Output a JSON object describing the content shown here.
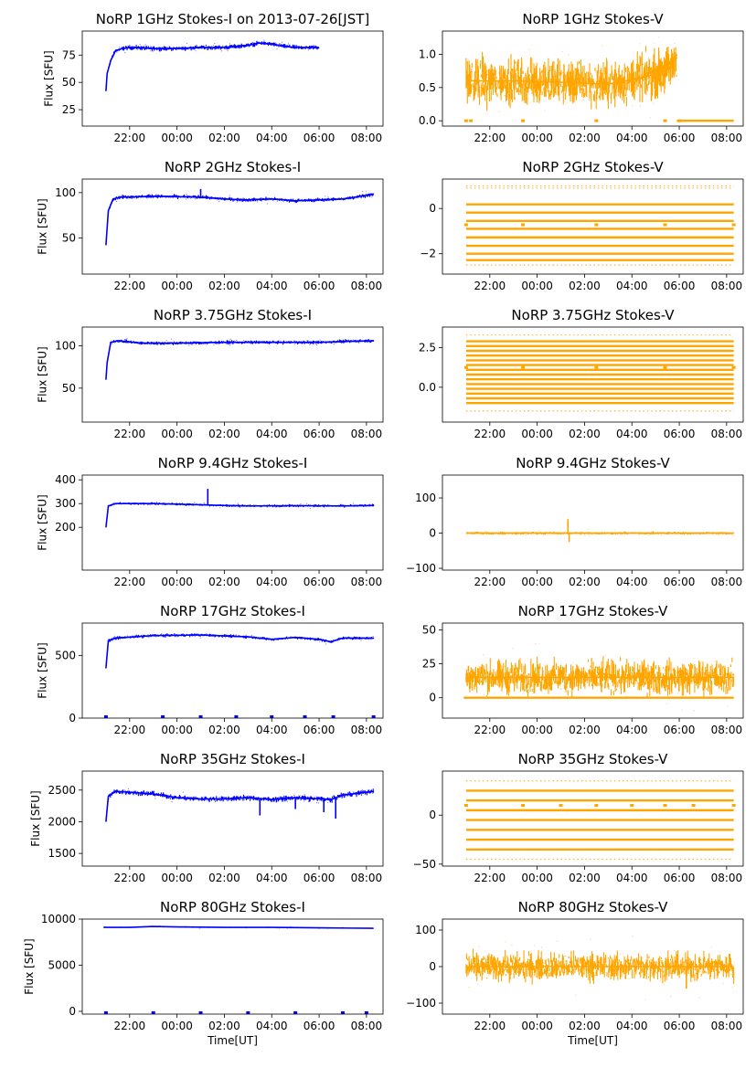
{
  "figure": {
    "xtick_labels": [
      "22:00",
      "00:00",
      "02:00",
      "04:00",
      "06:00",
      "08:00"
    ],
    "xlabel": "Time[UT]",
    "ylabel": "Flux [SFU]",
    "colors": {
      "stokes_i": "#0000ff",
      "stokes_v": "#ffa500"
    }
  },
  "chart_data": [
    {
      "type": "scatter",
      "stokes": "I",
      "row": 0,
      "title": "NoRP 1GHz Stokes-I on 2013-07-26[JST]",
      "ylabel": "Flux [SFU]",
      "x_hours_range": [
        20.0,
        32.7
      ],
      "ylim": [
        10,
        97
      ],
      "yticks": [
        25,
        50,
        75
      ],
      "data_span_hours": [
        21.0,
        30.0
      ],
      "points": [
        [
          21.0,
          42
        ],
        [
          21.05,
          58
        ],
        [
          21.2,
          70
        ],
        [
          21.4,
          79
        ],
        [
          21.7,
          81
        ],
        [
          22.0,
          82
        ],
        [
          23.0,
          81
        ],
        [
          24.0,
          81
        ],
        [
          25.0,
          82
        ],
        [
          26.0,
          82
        ],
        [
          27.0,
          84
        ],
        [
          27.5,
          86
        ],
        [
          28.0,
          85
        ],
        [
          28.5,
          83
        ],
        [
          29.0,
          82
        ],
        [
          30.0,
          82
        ]
      ],
      "noise": 3,
      "spikes": []
    },
    {
      "type": "scatter",
      "stokes": "V",
      "row": 0,
      "title": "NoRP 1GHz Stokes-V",
      "x_hours_range": [
        20.0,
        32.7
      ],
      "ylim": [
        -0.08,
        1.35
      ],
      "yticks": [
        0.0,
        0.5,
        1.0
      ],
      "ytick_labels": [
        "0.0",
        "0.5",
        "1.0"
      ],
      "data_span_hours": [
        21.0,
        29.9
      ],
      "points": [
        [
          21.0,
          0.6
        ],
        [
          23.0,
          0.6
        ],
        [
          25.0,
          0.58
        ],
        [
          27.0,
          0.55
        ],
        [
          28.0,
          0.62
        ],
        [
          29.0,
          0.7
        ],
        [
          29.7,
          0.8
        ],
        [
          29.9,
          1.0
        ]
      ],
      "noise": 0.5,
      "baseline": {
        "value": 0.0,
        "from": 29.9,
        "to": 32.3
      },
      "markers": [
        21.0,
        21.2,
        23.4,
        26.5,
        29.4,
        30.0
      ]
    },
    {
      "type": "scatter",
      "stokes": "I",
      "row": 1,
      "title": "NoRP 2GHz Stokes-I",
      "x_hours_range": [
        20.0,
        32.7
      ],
      "ylim": [
        10,
        115
      ],
      "yticks": [
        50,
        100
      ],
      "data_span_hours": [
        21.0,
        32.3
      ],
      "points": [
        [
          21.0,
          42
        ],
        [
          21.1,
          80
        ],
        [
          21.3,
          93
        ],
        [
          21.6,
          95
        ],
        [
          23.0,
          96
        ],
        [
          25.0,
          95
        ],
        [
          26.0,
          93
        ],
        [
          27.0,
          92
        ],
        [
          28.0,
          93
        ],
        [
          29.0,
          91
        ],
        [
          30.0,
          92
        ],
        [
          31.0,
          93
        ],
        [
          32.0,
          97
        ],
        [
          32.3,
          98
        ]
      ],
      "noise": 3,
      "spikes": [
        [
          25.0,
          104
        ]
      ]
    },
    {
      "type": "scatter",
      "stokes": "V",
      "row": 1,
      "title": "NoRP 2GHz Stokes-V",
      "x_hours_range": [
        20.0,
        32.7
      ],
      "ylim": [
        -2.9,
        1.3
      ],
      "yticks": [
        -2,
        0
      ],
      "ytick_labels": [
        "−2",
        "0"
      ],
      "data_span_hours": [
        21.0,
        32.3
      ],
      "levels": [
        0.18,
        -0.18,
        -0.55,
        -0.9,
        -1.28,
        -1.65,
        -2.0,
        -2.28
      ],
      "sparse_levels": [
        1.0,
        0.9,
        -2.5
      ],
      "markers": [
        21.0,
        23.4,
        26.5,
        29.4,
        32.3
      ]
    },
    {
      "type": "scatter",
      "stokes": "I",
      "row": 2,
      "title": "NoRP 3.75GHz Stokes-I",
      "x_hours_range": [
        20.0,
        32.7
      ],
      "ylim": [
        10,
        122
      ],
      "yticks": [
        50,
        100
      ],
      "data_span_hours": [
        21.0,
        32.3
      ],
      "points": [
        [
          21.0,
          60
        ],
        [
          21.05,
          80
        ],
        [
          21.2,
          104
        ],
        [
          21.5,
          106
        ],
        [
          22.5,
          103
        ],
        [
          24.0,
          103
        ],
        [
          26.0,
          104
        ],
        [
          28.0,
          104
        ],
        [
          30.0,
          104
        ],
        [
          31.0,
          105
        ],
        [
          32.3,
          106
        ]
      ],
      "noise": 3,
      "spikes": []
    },
    {
      "type": "scatter",
      "stokes": "V",
      "row": 2,
      "title": "NoRP 3.75GHz Stokes-V",
      "x_hours_range": [
        20.0,
        32.7
      ],
      "ylim": [
        -2.2,
        3.8
      ],
      "yticks": [
        0.0,
        2.5
      ],
      "ytick_labels": [
        "0.0",
        "2.5"
      ],
      "data_span_hours": [
        21.0,
        32.3
      ],
      "levels": [
        2.9,
        2.6,
        2.3,
        2.0,
        1.7,
        1.4,
        1.1,
        0.8,
        0.5,
        0.2,
        -0.1,
        -0.4,
        -0.7,
        -1.0
      ],
      "sparse_levels": [
        3.3,
        -1.5
      ],
      "markers": [
        21.0,
        23.4,
        26.5,
        29.4,
        32.3
      ]
    },
    {
      "type": "scatter",
      "stokes": "I",
      "row": 3,
      "title": "NoRP 9.4GHz Stokes-I",
      "x_hours_range": [
        20.0,
        32.7
      ],
      "ylim": [
        20,
        420
      ],
      "yticks": [
        200,
        300,
        400
      ],
      "data_span_hours": [
        21.0,
        32.3
      ],
      "points": [
        [
          21.0,
          200
        ],
        [
          21.1,
          290
        ],
        [
          21.4,
          300
        ],
        [
          23.0,
          300
        ],
        [
          25.0,
          295
        ],
        [
          26.0,
          292
        ],
        [
          27.0,
          290
        ],
        [
          29.0,
          291
        ],
        [
          31.0,
          290
        ],
        [
          32.3,
          292
        ]
      ],
      "noise": 8,
      "spikes": [
        [
          25.3,
          362
        ]
      ]
    },
    {
      "type": "scatter",
      "stokes": "V",
      "row": 3,
      "title": "NoRP 9.4GHz Stokes-V",
      "x_hours_range": [
        20.0,
        32.7
      ],
      "ylim": [
        -105,
        165
      ],
      "yticks": [
        -100,
        0,
        100
      ],
      "ytick_labels": [
        "−100",
        "0",
        "100"
      ],
      "data_span_hours": [
        21.0,
        32.3
      ],
      "points": [
        [
          21.0,
          0
        ],
        [
          32.3,
          0
        ]
      ],
      "noise": 6,
      "spikes": [
        [
          25.3,
          40
        ],
        [
          25.35,
          -25
        ]
      ]
    },
    {
      "type": "scatter",
      "stokes": "I",
      "row": 4,
      "title": "NoRP 17GHz Stokes-I",
      "x_hours_range": [
        20.0,
        32.7
      ],
      "ylim": [
        0,
        760
      ],
      "yticks": [
        0,
        500
      ],
      "data_span_hours": [
        21.0,
        32.3
      ],
      "points": [
        [
          21.0,
          400
        ],
        [
          21.1,
          620
        ],
        [
          21.4,
          640
        ],
        [
          23.0,
          660
        ],
        [
          25.0,
          665
        ],
        [
          27.0,
          650
        ],
        [
          28.0,
          630
        ],
        [
          29.0,
          645
        ],
        [
          30.0,
          630
        ],
        [
          30.5,
          610
        ],
        [
          31.0,
          640
        ],
        [
          32.3,
          640
        ]
      ],
      "noise": 18,
      "spikes": [],
      "markers": [
        21.0,
        23.4,
        25.0,
        26.5,
        28.0,
        29.4,
        30.6,
        32.3
      ]
    },
    {
      "type": "scatter",
      "stokes": "V",
      "row": 4,
      "title": "NoRP 17GHz Stokes-V",
      "x_hours_range": [
        20.0,
        32.7
      ],
      "ylim": [
        -15,
        55
      ],
      "yticks": [
        0,
        25,
        50
      ],
      "data_span_hours": [
        21.0,
        32.3
      ],
      "points": [
        [
          21.0,
          15
        ],
        [
          32.3,
          15
        ]
      ],
      "noise": 18,
      "baseline": {
        "value": 0.0,
        "from": 20.9,
        "to": 32.3
      }
    },
    {
      "type": "scatter",
      "stokes": "I",
      "row": 5,
      "title": "NoRP 35GHz Stokes-I",
      "x_hours_range": [
        20.0,
        32.7
      ],
      "ylim": [
        1300,
        2800
      ],
      "yticks": [
        1500,
        2000,
        2500
      ],
      "data_span_hours": [
        21.0,
        32.3
      ],
      "points": [
        [
          21.0,
          2000
        ],
        [
          21.1,
          2400
        ],
        [
          21.4,
          2480
        ],
        [
          23.0,
          2440
        ],
        [
          24.0,
          2380
        ],
        [
          25.0,
          2360
        ],
        [
          26.0,
          2360
        ],
        [
          27.0,
          2380
        ],
        [
          28.0,
          2350
        ],
        [
          29.0,
          2380
        ],
        [
          30.0,
          2360
        ],
        [
          30.5,
          2350
        ],
        [
          31.0,
          2420
        ],
        [
          32.3,
          2480
        ]
      ],
      "noise": 60,
      "spikes": [
        [
          27.5,
          2100
        ],
        [
          29.0,
          2200
        ],
        [
          30.2,
          2150
        ],
        [
          30.7,
          2050
        ]
      ]
    },
    {
      "type": "scatter",
      "stokes": "V",
      "row": 5,
      "title": "NoRP 35GHz Stokes-V",
      "x_hours_range": [
        20.0,
        32.7
      ],
      "ylim": [
        -52,
        45
      ],
      "yticks": [
        -50,
        0
      ],
      "ytick_labels": [
        "−50",
        "0"
      ],
      "data_span_hours": [
        21.0,
        32.3
      ],
      "levels": [
        25,
        15,
        5,
        -5,
        -15,
        -25,
        -35
      ],
      "sparse_levels": [
        35,
        -45
      ],
      "markers": [
        21.0,
        23.4,
        25.0,
        26.5,
        28.0,
        29.4,
        30.6,
        32.3
      ]
    },
    {
      "type": "scatter",
      "stokes": "I",
      "row": 6,
      "title": "NoRP 80GHz Stokes-I",
      "xlabel": "Time[UT]",
      "x_hours_range": [
        20.0,
        32.7
      ],
      "ylim": [
        -300,
        10000
      ],
      "yticks": [
        0,
        5000,
        10000
      ],
      "data_span_hours": [
        20.9,
        32.3
      ],
      "points": [
        [
          20.9,
          9100
        ],
        [
          22.0,
          9100
        ],
        [
          23.0,
          9200
        ],
        [
          24.0,
          9150
        ],
        [
          26.0,
          9100
        ],
        [
          28.0,
          9100
        ],
        [
          30.0,
          9050
        ],
        [
          32.3,
          9000
        ]
      ],
      "noise": 70,
      "spikes": [],
      "markers": [
        21.0,
        23.0,
        25.0,
        27.0,
        29.0,
        31.0,
        32.0
      ]
    },
    {
      "type": "scatter",
      "stokes": "V",
      "row": 6,
      "title": "NoRP 80GHz Stokes-V",
      "xlabel": "Time[UT]",
      "x_hours_range": [
        20.0,
        32.7
      ],
      "ylim": [
        -130,
        130
      ],
      "yticks": [
        -100,
        0,
        100
      ],
      "ytick_labels": [
        "−100",
        "0",
        "100"
      ],
      "data_span_hours": [
        21.0,
        32.3
      ],
      "points": [
        [
          21.0,
          0
        ],
        [
          32.3,
          0
        ]
      ],
      "noise": 55,
      "spikes": [
        [
          30.3,
          -60
        ]
      ]
    }
  ]
}
